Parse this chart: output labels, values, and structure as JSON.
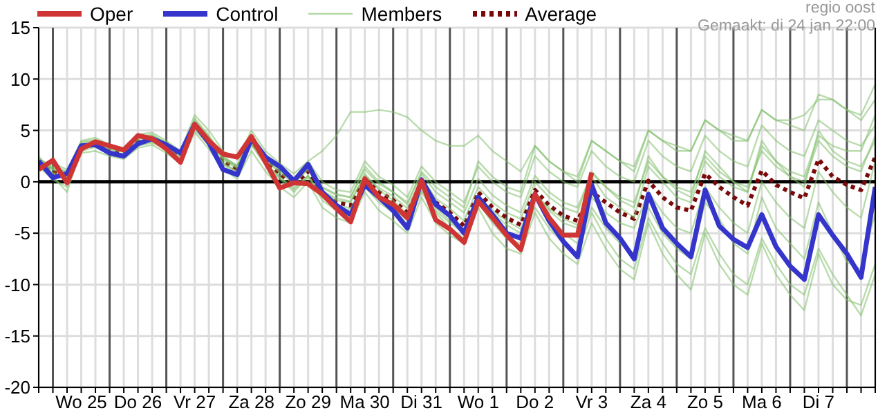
{
  "chart_data": {
    "type": "line",
    "annotations": [
      "regio oost",
      "Gemaakt: di 24 jan 22:00"
    ],
    "categories": [
      null,
      null,
      null,
      "Wo 25",
      null,
      null,
      null,
      "Do 26",
      null,
      null,
      null,
      "Vr 27",
      null,
      null,
      null,
      "Za 28",
      null,
      null,
      null,
      "Zo 29",
      null,
      null,
      null,
      "Ma 30",
      null,
      null,
      null,
      "Di 31",
      null,
      null,
      null,
      "Wo 1",
      null,
      null,
      null,
      "Do 2",
      null,
      null,
      null,
      "Vr 3",
      null,
      null,
      null,
      "Za 4",
      null,
      null,
      null,
      "Zo 5",
      null,
      null,
      null,
      "Ma 6",
      null,
      null,
      null,
      "Di 7",
      null,
      null,
      null,
      null
    ],
    "ylim": [
      -20,
      15
    ],
    "yticks": [
      -20,
      -15,
      -10,
      -5,
      0,
      5,
      10,
      15
    ],
    "grid": true,
    "legend": "top left",
    "marker": "none",
    "ref_lines": [
      {
        "axis": "y",
        "value": 0,
        "color": "#000000"
      }
    ],
    "series": [
      {
        "name": "Oper",
        "color": "#d03535",
        "values": [
          1.2,
          2.1,
          -0.1,
          3.2,
          3.9,
          3.5,
          3.1,
          4.5,
          4.2,
          3.2,
          1.9,
          5.6,
          4.0,
          2.7,
          2.4,
          4.4,
          1.9,
          -0.6,
          -0.1,
          -0.2,
          -1.2,
          -2.6,
          -3.9,
          0.3,
          -1.5,
          -2.2,
          -3.5,
          0.1,
          -3.7,
          -4.6,
          -5.9,
          -1.9,
          -3.5,
          -5.2,
          -6.6,
          -1.2,
          -3.5,
          -5.2,
          -5.2,
          0.9,
          null,
          null,
          null,
          null,
          null,
          null,
          null,
          null,
          null,
          null,
          null,
          null,
          null,
          null,
          null,
          null,
          null,
          null,
          null,
          null
        ]
      },
      {
        "name": "Control",
        "color": "#3535cc",
        "values": [
          2.0,
          0.4,
          0.8,
          3.5,
          3.6,
          2.8,
          2.5,
          3.7,
          4.2,
          3.6,
          2.8,
          5.6,
          3.8,
          1.2,
          0.7,
          4.2,
          2.4,
          1.5,
          0.1,
          1.7,
          -1.0,
          -2.3,
          -3.2,
          -0.3,
          -1.5,
          -2.8,
          -4.5,
          0.2,
          -2.2,
          -3.3,
          -5.0,
          -1.5,
          -3.2,
          -5.0,
          -5.5,
          -1.2,
          -3.8,
          -5.8,
          -7.3,
          -0.3,
          -4.0,
          -5.5,
          -7.5,
          -1.2,
          -4.5,
          -6.0,
          -7.3,
          -0.8,
          -4.3,
          -5.6,
          -6.4,
          -3.2,
          -6.3,
          -8.2,
          -9.5,
          -3.2,
          -5.2,
          -7.0,
          -9.3,
          -0.5
        ]
      },
      {
        "name": "Members",
        "color": "#7fbf6a",
        "values": [
          2.0,
          1.2,
          0.7,
          3.6,
          3.9,
          3.3,
          3.1,
          4.2,
          4.4,
          3.7,
          2.7,
          5.9,
          4.4,
          2.3,
          1.5,
          4.3,
          2.3,
          1.2,
          0.3,
          2.0,
          3.0,
          4.5,
          6.8,
          6.8,
          7.0,
          6.8,
          6.3,
          5.0,
          4.0,
          3.5,
          3.5,
          4.5,
          3.0,
          2.0,
          1.0,
          3.5,
          2.0,
          1.0,
          0.0,
          4.0,
          3.0,
          2.0,
          1.0,
          5.0,
          4.0,
          3.0,
          3.0,
          6.0,
          5.0,
          4.0,
          4.0,
          7.0,
          6.0,
          6.0,
          6.5,
          8.0,
          8.0,
          7.0,
          6.0,
          8.0
        ]
      },
      {
        "color": "#7fbf6a",
        "values": [
          1.5,
          0.2,
          -0.5,
          2.8,
          3.0,
          2.5,
          2.2,
          3.3,
          3.6,
          2.8,
          1.8,
          4.8,
          3.2,
          1.2,
          0.3,
          3.0,
          1.0,
          -0.5,
          -1.5,
          0.0,
          -2.5,
          -3.5,
          -4.0,
          -1.0,
          -2.8,
          -3.8,
          -5.0,
          -1.5,
          -4.0,
          -5.2,
          -6.0,
          -2.5,
          -5.0,
          -6.5,
          -7.0,
          -3.0,
          -5.5,
          -7.0,
          -8.0,
          -4.0,
          -6.5,
          -8.5,
          -9.5,
          -4.0,
          -7.0,
          -9.0,
          -10.5,
          -5.0,
          -8.0,
          -10.0,
          -11.0,
          -6.0,
          -9.0,
          -11.0,
          -12.5,
          -7.0,
          -10.0,
          -11.5,
          -12.0,
          -8.0
        ]
      },
      {
        "color": "#7fbf6a",
        "values": [
          2.2,
          1.5,
          1.0,
          4.0,
          4.3,
          3.6,
          3.3,
          4.6,
          4.8,
          4.0,
          3.0,
          6.5,
          5.0,
          3.0,
          2.2,
          5.0,
          3.0,
          1.8,
          0.8,
          2.0,
          0.0,
          -0.8,
          -1.0,
          2.0,
          0.5,
          -0.3,
          -1.5,
          1.5,
          0.0,
          -1.0,
          -2.0,
          1.5,
          0.0,
          -1.0,
          -1.5,
          2.5,
          1.0,
          0.0,
          -0.5,
          3.0,
          1.5,
          0.5,
          0.0,
          4.0,
          2.5,
          1.5,
          1.0,
          4.5,
          3.0,
          2.0,
          1.5,
          5.5,
          4.0,
          3.0,
          2.5,
          6.0,
          5.0,
          4.0,
          3.5,
          5.5
        ]
      },
      {
        "color": "#7fbf6a",
        "values": [
          2.5,
          0.8,
          0.2,
          3.0,
          3.4,
          2.7,
          2.4,
          3.5,
          3.8,
          3.2,
          2.1,
          5.0,
          3.6,
          1.6,
          0.8,
          3.6,
          1.6,
          0.3,
          -1.0,
          0.5,
          -1.8,
          -2.8,
          -3.2,
          -0.5,
          -2.0,
          -3.0,
          -4.2,
          -1.0,
          -3.0,
          -4.5,
          -5.5,
          -2.0,
          -3.5,
          -4.8,
          -5.5,
          -1.5,
          -3.5,
          -5.0,
          -6.0,
          -2.5,
          -4.5,
          -6.0,
          -7.0,
          -2.5,
          -5.0,
          -6.5,
          -7.5,
          -2.0,
          -3.6,
          -6.0,
          -7.0,
          -1.5,
          -4.5,
          -6.0,
          -7.5,
          -2.0,
          -5.0,
          -7.8,
          -8.5,
          -3.0
        ]
      },
      {
        "color": "#7fbf6a",
        "values": [
          1.2,
          1.8,
          1.2,
          3.8,
          4.0,
          3.3,
          3.0,
          4.2,
          4.5,
          3.8,
          2.8,
          6.0,
          4.3,
          2.4,
          1.6,
          4.4,
          2.4,
          1.2,
          0.2,
          1.5,
          -0.6,
          -1.3,
          -1.5,
          1.2,
          -0.2,
          -1.0,
          -2.0,
          0.8,
          -1.0,
          -2.0,
          -3.0,
          0.3,
          -1.3,
          -2.3,
          -3.0,
          0.6,
          -1.0,
          -2.0,
          -2.5,
          0.8,
          -0.5,
          -1.5,
          -2.0,
          2.0,
          0.5,
          -0.5,
          -1.0,
          2.5,
          1.0,
          0.0,
          -0.5,
          3.0,
          1.5,
          0.5,
          0.0,
          4.0,
          2.5,
          1.5,
          1.0,
          4.5
        ]
      },
      {
        "color": "#7fbf6a",
        "values": [
          2.0,
          0.5,
          -1.0,
          3.2,
          3.5,
          2.9,
          2.6,
          3.7,
          4.0,
          3.3,
          2.3,
          5.2,
          3.8,
          1.8,
          1.0,
          3.8,
          1.8,
          0.5,
          -0.8,
          0.6,
          -1.5,
          -2.5,
          -2.8,
          -0.3,
          -1.5,
          -2.5,
          -3.8,
          -0.8,
          -2.8,
          -4.0,
          -5.0,
          -1.5,
          -3.0,
          -4.2,
          -5.0,
          -1.0,
          -2.8,
          -4.0,
          -4.5,
          0.5,
          -1.5,
          -2.5,
          -3.5,
          1.5,
          0.0,
          -1.5,
          -2.0,
          2.0,
          0.5,
          -0.5,
          -1.0,
          3.5,
          2.0,
          1.0,
          0.5,
          4.5,
          3.5,
          3.0,
          3.0,
          6.5
        ]
      },
      {
        "color": "#7fbf6a",
        "values": [
          1.8,
          1.2,
          0.8,
          3.5,
          3.7,
          3.1,
          2.9,
          4.0,
          4.2,
          3.6,
          2.6,
          5.6,
          4.1,
          2.1,
          1.3,
          4.1,
          2.1,
          0.9,
          -0.2,
          1.2,
          -1.0,
          -1.8,
          -2.0,
          0.8,
          -0.8,
          -1.8,
          -3.2,
          -0.5,
          -2.5,
          -3.8,
          -4.8,
          -2.0,
          -4.0,
          -5.5,
          -6.0,
          -2.5,
          -4.5,
          -6.0,
          -7.0,
          -3.0,
          -5.5,
          -7.5,
          -8.5,
          -3.5,
          -6.0,
          -8.0,
          -9.0,
          -4.5,
          -7.0,
          -9.0,
          -10.0,
          -5.5,
          -8.0,
          -10.0,
          -11.0,
          -6.5,
          -9.0,
          -11.0,
          -13.0,
          -9.0
        ]
      },
      {
        "color": "#7fbf6a",
        "values": [
          1.6,
          0.9,
          0.4,
          3.6,
          3.8,
          3.2,
          3.0,
          4.4,
          4.6,
          3.8,
          2.7,
          6.2,
          4.5,
          2.5,
          1.5,
          4.6,
          2.6,
          1.2,
          0.2,
          1.8,
          -0.5,
          -1.2,
          -1.5,
          1.5,
          0.0,
          -1.0,
          -2.2,
          1.0,
          -0.5,
          -1.5,
          -2.5,
          2.0,
          0.5,
          -0.5,
          -1.0,
          3.5,
          2.0,
          1.0,
          0.5,
          4.0,
          3.0,
          2.0,
          1.5,
          5.0,
          4.0,
          3.5,
          3.0,
          6.0,
          5.0,
          4.5,
          4.0,
          7.0,
          6.0,
          5.5,
          5.0,
          8.5,
          8.0,
          7.0,
          6.5,
          9.5
        ]
      },
      {
        "color": "#7fbf6a",
        "values": [
          2.3,
          1.3,
          0.6,
          3.3,
          3.5,
          2.8,
          2.5,
          3.6,
          3.9,
          3.3,
          2.4,
          5.3,
          3.8,
          1.8,
          1.0,
          3.7,
          1.7,
          0.4,
          -0.6,
          0.6,
          -1.4,
          -2.2,
          -2.6,
          0.0,
          -1.3,
          -2.2,
          -3.5,
          -0.6,
          -2.3,
          -3.4,
          -4.6,
          -1.4,
          -2.8,
          -3.8,
          -4.6,
          -1.2,
          -2.6,
          -3.6,
          -4.2,
          -1.5,
          -3.0,
          -4.0,
          -4.5,
          -1.0,
          -3.0,
          -4.5,
          -5.0,
          -0.5,
          -2.5,
          -4.0,
          -5.0,
          0.0,
          -2.0,
          -3.5,
          -4.5,
          1.0,
          -1.0,
          -2.5,
          -3.5,
          2.0
        ]
      },
      {
        "color": "#7fbf6a",
        "values": [
          1.9,
          1.4,
          0.9,
          3.9,
          4.1,
          3.4,
          3.2,
          4.3,
          4.4,
          3.7,
          2.9,
          5.8,
          4.2,
          2.3,
          1.4,
          4.3,
          2.3,
          1.0,
          0.0,
          1.3,
          -0.9,
          -1.6,
          -1.9,
          0.6,
          -0.6,
          -1.4,
          -2.6,
          0.4,
          -1.6,
          -2.6,
          -3.8,
          -0.5,
          -2.0,
          -3.0,
          -3.6,
          0.0,
          -1.5,
          -2.5,
          -3.0,
          1.0,
          -0.5,
          -1.8,
          -2.5,
          2.5,
          0.5,
          -0.8,
          -1.5,
          3.0,
          1.5,
          0.0,
          -1.0,
          4.0,
          2.0,
          0.5,
          -0.5,
          5.0,
          3.0,
          2.0,
          1.5,
          4.0
        ]
      },
      {
        "name": "Average",
        "color": "#7a0a0a",
        "line_style": "dotted",
        "values": [
          1.8,
          1.0,
          0.5,
          3.4,
          3.6,
          3.0,
          2.8,
          3.9,
          4.1,
          3.5,
          2.5,
          5.5,
          4.0,
          2.0,
          1.2,
          4.0,
          2.0,
          0.8,
          -0.3,
          1.0,
          -1.2,
          -2.0,
          -2.3,
          0.3,
          -1.0,
          -1.8,
          -3.0,
          -0.2,
          -2.0,
          -3.0,
          -4.3,
          -1.0,
          -2.5,
          -3.5,
          -4.2,
          -0.8,
          -2.3,
          -3.3,
          -3.8,
          -1.0,
          -2.0,
          -3.0,
          -3.6,
          0.1,
          -1.5,
          -2.5,
          -2.8,
          0.8,
          -0.5,
          -1.5,
          -2.3,
          1.1,
          -0.3,
          -1.0,
          -1.6,
          2.2,
          0.5,
          -0.3,
          -0.8,
          2.4
        ]
      }
    ]
  }
}
